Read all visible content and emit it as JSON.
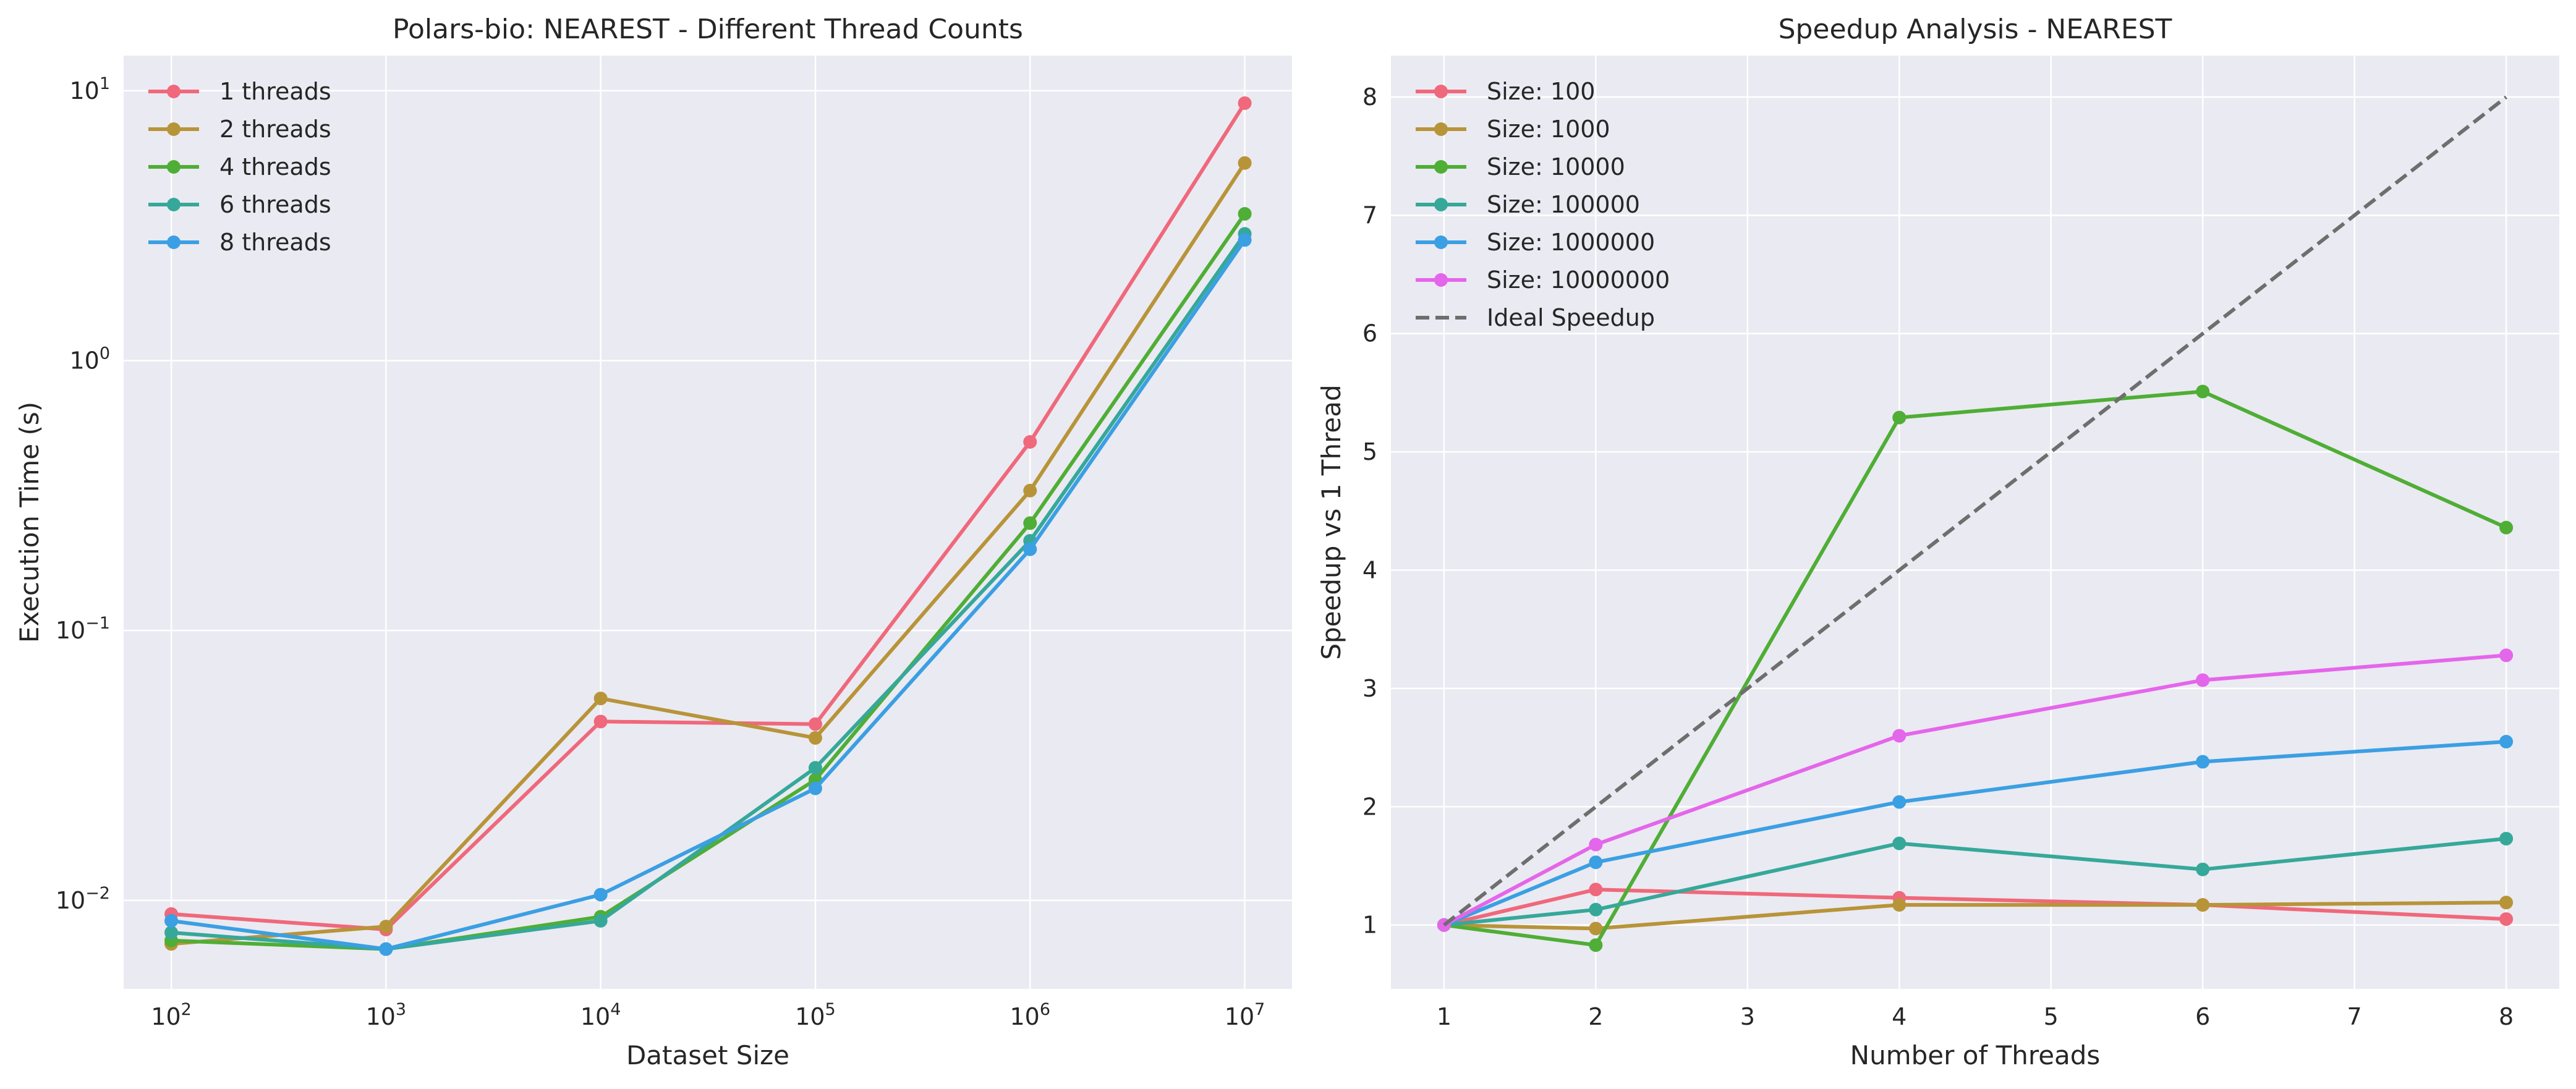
{
  "chart_data": [
    {
      "type": "line",
      "title": "Polars-bio: NEAREST - Different Thread Counts",
      "xlabel": "Dataset Size",
      "ylabel": "Execution Time (s)",
      "xscale": "log",
      "yscale": "log",
      "xlim": [
        60,
        16600000
      ],
      "ylim": [
        0.0047,
        13.5
      ],
      "x_ticks": [
        {
          "base": "10",
          "exp": "2",
          "value": 100
        },
        {
          "base": "10",
          "exp": "3",
          "value": 1000
        },
        {
          "base": "10",
          "exp": "4",
          "value": 10000
        },
        {
          "base": "10",
          "exp": "5",
          "value": 100000
        },
        {
          "base": "10",
          "exp": "6",
          "value": 1000000
        },
        {
          "base": "10",
          "exp": "7",
          "value": 10000000
        }
      ],
      "y_ticks": [
        {
          "base": "10",
          "exp": "−2",
          "value": 0.01
        },
        {
          "base": "10",
          "exp": "−1",
          "value": 0.1
        },
        {
          "base": "10",
          "exp": "0",
          "value": 1
        },
        {
          "base": "10",
          "exp": "1",
          "value": 10
        }
      ],
      "grid": true,
      "legend_position": "top-left",
      "x": [
        100,
        1000,
        10000,
        100000,
        1000000,
        10000000
      ],
      "series": [
        {
          "name": "1 threads",
          "color": "#f0687b",
          "values": [
            0.0089,
            0.0078,
            0.046,
            0.045,
            0.5,
            9.0
          ]
        },
        {
          "name": "2 threads",
          "color": "#b89439",
          "values": [
            0.0069,
            0.008,
            0.056,
            0.04,
            0.33,
            5.4
          ]
        },
        {
          "name": "4 threads",
          "color": "#4fae35",
          "values": [
            0.0071,
            0.0066,
            0.0087,
            0.028,
            0.25,
            3.5
          ]
        },
        {
          "name": "6 threads",
          "color": "#36a89a",
          "values": [
            0.0076,
            0.0066,
            0.0084,
            0.031,
            0.215,
            2.95
          ]
        },
        {
          "name": "8 threads",
          "color": "#3b9fe3",
          "values": [
            0.0084,
            0.0066,
            0.0105,
            0.026,
            0.2,
            2.8
          ]
        }
      ]
    },
    {
      "type": "line",
      "title": "Speedup Analysis - NEAREST",
      "xlabel": "Number of Threads",
      "ylabel": "Speedup vs 1 Thread",
      "xlim": [
        0.65,
        8.35
      ],
      "ylim": [
        0.46,
        8.35
      ],
      "x_ticks": [
        1,
        2,
        3,
        4,
        5,
        6,
        7,
        8
      ],
      "y_ticks": [
        1,
        2,
        3,
        4,
        5,
        6,
        7,
        8
      ],
      "grid": true,
      "legend_position": "top-left",
      "x": [
        1,
        2,
        4,
        6,
        8
      ],
      "series": [
        {
          "name": "Size: 100",
          "color": "#f0687b",
          "values": [
            1.0,
            1.3,
            1.23,
            1.17,
            1.05
          ]
        },
        {
          "name": "Size: 1000",
          "color": "#b89439",
          "values": [
            1.0,
            0.97,
            1.17,
            1.17,
            1.19
          ]
        },
        {
          "name": "Size: 10000",
          "color": "#4fae35",
          "values": [
            1.0,
            0.83,
            5.29,
            5.51,
            4.36
          ]
        },
        {
          "name": "Size: 100000",
          "color": "#36a89a",
          "values": [
            1.0,
            1.13,
            1.69,
            1.47,
            1.73
          ]
        },
        {
          "name": "Size: 1000000",
          "color": "#3b9fe3",
          "values": [
            1.0,
            1.53,
            2.04,
            2.38,
            2.55
          ]
        },
        {
          "name": "Size: 10000000",
          "color": "#e466ea",
          "values": [
            1.0,
            1.68,
            2.6,
            3.07,
            3.28
          ]
        },
        {
          "name": "Ideal Speedup",
          "color": "#6e6e6e",
          "dashed": true,
          "markers": false,
          "x": [
            1,
            8
          ],
          "values": [
            1,
            8
          ]
        }
      ]
    }
  ],
  "style": {
    "plot_background": "#eaeaf2",
    "grid_color": "#ffffff",
    "text_color": "#262626"
  }
}
